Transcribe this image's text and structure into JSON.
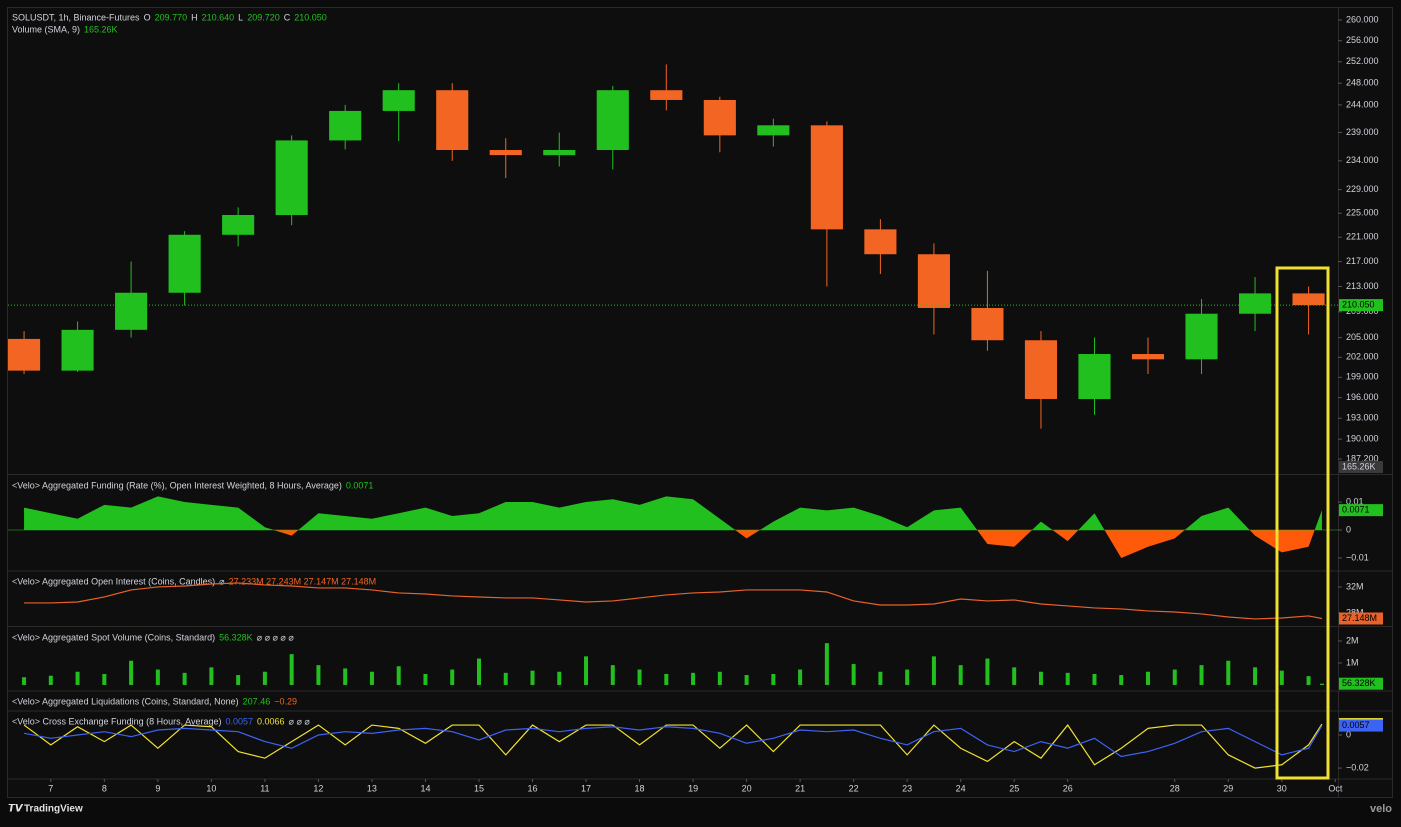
{
  "chart_data": [
    {
      "type": "candlestick",
      "log": true,
      "xlim": [
        6.2,
        31.05
      ],
      "ylim": [
        185.25,
        262.35
      ],
      "up_color": "#22c01e",
      "down_color": "#f26522",
      "legend": [
        [
          {
            "text": "SOLUSDT, 1h, Binance-Futures",
            "color": "#d1d4dc"
          },
          {
            "text": "O",
            "color": "#d1d4dc"
          },
          {
            "text": "209.770",
            "color": "#22c01e"
          },
          {
            "text": "H",
            "color": "#d1d4dc"
          },
          {
            "text": "210.640",
            "color": "#22c01e"
          },
          {
            "text": "L",
            "color": "#d1d4dc"
          },
          {
            "text": "209.720",
            "color": "#22c01e"
          },
          {
            "text": "C",
            "color": "#d1d4dc"
          },
          {
            "text": "210.050",
            "color": "#22c01e"
          }
        ],
        [
          {
            "text": "Volume (SMA, 9)",
            "color": "#d1d4dc"
          },
          {
            "text": "165.26K",
            "color": "#22c01e"
          }
        ]
      ],
      "x": [
        6.5,
        7.5,
        8.5,
        9.5,
        10.5,
        11.5,
        12.5,
        13.5,
        14.5,
        15.5,
        16.5,
        17.5,
        18.5,
        19.5,
        20.5,
        21.5,
        22.5,
        23.5,
        24.5,
        25.5,
        26.5,
        27.5,
        28.5,
        29.5,
        30.5
      ],
      "open": [
        204.8,
        200,
        206.2,
        212,
        221.4,
        224.7,
        237.6,
        242.9,
        246.7,
        235.9,
        235,
        235.9,
        246.7,
        244.9,
        238.5,
        240.3,
        222.3,
        218.2,
        209.6,
        204.6,
        195.8,
        202.5,
        201.7,
        208.7,
        211.9
      ],
      "high": [
        206,
        207.5,
        217,
        222,
        226,
        238.5,
        244,
        248,
        248,
        238,
        239,
        247.5,
        251.5,
        245.5,
        241.5,
        241,
        224,
        220,
        215.5,
        206,
        205,
        205,
        211,
        214.5,
        213
      ],
      "low": [
        199.5,
        199.8,
        205,
        210,
        219.5,
        223,
        236,
        237.5,
        234,
        231,
        233,
        232.5,
        243,
        235.5,
        236.5,
        213,
        215,
        205.5,
        203,
        191.5,
        193.5,
        199.5,
        199.5,
        206,
        205.5
      ],
      "close": [
        200,
        206.2,
        212,
        221.4,
        224.7,
        237.6,
        242.9,
        246.7,
        235.9,
        235,
        235.9,
        246.7,
        244.9,
        238.5,
        240.3,
        222.3,
        218.2,
        209.6,
        204.6,
        195.8,
        202.5,
        201.7,
        208.7,
        211.9,
        210.05
      ],
      "price_line": {
        "value": 210.05,
        "label": "210.050"
      },
      "yticks": [
        {
          "value": 187.2,
          "label": "187.200"
        },
        {
          "value": 190,
          "label": "190.000"
        },
        {
          "value": 193,
          "label": "193.000"
        },
        {
          "value": 196,
          "label": "196.000"
        },
        {
          "value": 199,
          "label": "199.000"
        },
        {
          "value": 202,
          "label": "202.000"
        },
        {
          "value": 205,
          "label": "205.000"
        },
        {
          "value": 209,
          "label": "209.000"
        },
        {
          "value": 213,
          "label": "213.000"
        },
        {
          "value": 217,
          "label": "217.000"
        },
        {
          "value": 221,
          "label": "221.000"
        },
        {
          "value": 225,
          "label": "225.000"
        },
        {
          "value": 229,
          "label": "229.000"
        },
        {
          "value": 234,
          "label": "234.000"
        },
        {
          "value": 239,
          "label": "239.000"
        },
        {
          "value": 244,
          "label": "244.000"
        },
        {
          "value": 248,
          "label": "248.000"
        },
        {
          "value": 252,
          "label": "252.000"
        },
        {
          "value": 256,
          "label": "256.000"
        },
        {
          "value": 260,
          "label": "260.000"
        }
      ]
    },
    {
      "type": "area",
      "xlim": [
        6.2,
        31.05
      ],
      "ylim": [
        -0.0143,
        0.0193
      ],
      "color": "#22c01e",
      "negative_color": "#ff5a0a",
      "legend": [
        [
          {
            "text": "<Velo> Aggregated Funding (Rate (%), Open Interest Weighted, 8 Hours, Average)",
            "color": "#d1d4dc"
          },
          {
            "text": "0.0071",
            "color": "#22c01e"
          }
        ]
      ],
      "x": [
        6.5,
        7,
        7.5,
        8,
        8.5,
        9,
        9.5,
        10,
        10.5,
        11,
        11.5,
        12,
        12.5,
        13,
        13.5,
        14,
        14.5,
        15,
        15.5,
        16,
        16.5,
        17,
        17.5,
        18,
        18.5,
        19,
        19.5,
        20,
        20.5,
        21,
        21.5,
        22,
        22.5,
        23,
        23.5,
        24,
        24.5,
        25,
        25.5,
        26,
        26.5,
        27,
        27.5,
        28,
        28.5,
        29,
        29.5,
        30,
        30.5,
        30.75
      ],
      "values": [
        0.008,
        0.006,
        0.004,
        0.009,
        0.008,
        0.012,
        0.01,
        0.009,
        0.008,
        0.001,
        -0.002,
        0.006,
        0.005,
        0.004,
        0.006,
        0.008,
        0.005,
        0.006,
        0.01,
        0.01,
        0.008,
        0.01,
        0.011,
        0.009,
        0.012,
        0.011,
        0.004,
        -0.003,
        0.003,
        0.008,
        0.007,
        0.008,
        0.005,
        0.001,
        0.007,
        0.008,
        -0.005,
        -0.006,
        0.003,
        -0.004,
        0.006,
        -0.01,
        -0.006,
        -0.003,
        0.005,
        0.008,
        -0.002,
        -0.008,
        -0.006,
        0.0071
      ],
      "yticks": [
        0.01,
        0,
        {
          "value": -0.01,
          "label": "−0.01"
        }
      ]
    },
    {
      "type": "line",
      "xlim": [
        6.2,
        31.05
      ],
      "ylim": [
        26.15,
        34.3
      ],
      "legend": [
        [
          {
            "text": "<Velo> Aggregated Open Interest (Coins, Candles)",
            "color": "#d1d4dc"
          },
          {
            "text": "⌀",
            "color": "#d1d4dc"
          },
          {
            "text": "27.233M 27.243M 27.147M 27.148M",
            "color": "#f26522"
          }
        ]
      ],
      "series": [
        {
          "color": "#e8622a",
          "x": [
            6.5,
            7,
            7.5,
            8,
            8.5,
            9,
            9.5,
            10,
            10.5,
            11,
            11.5,
            12,
            12.5,
            13,
            13.5,
            14,
            14.5,
            15,
            15.5,
            16,
            16.5,
            17,
            17.5,
            18,
            18.5,
            19,
            19.5,
            20,
            20.5,
            21,
            21.5,
            22,
            22.5,
            23,
            23.5,
            24,
            24.5,
            25,
            25.5,
            26,
            26.5,
            27,
            27.5,
            28,
            28.5,
            29,
            29.5,
            30,
            30.5,
            30.75
          ],
          "values": [
            29.54,
            29.54,
            29.69,
            30.46,
            31.54,
            32,
            32.15,
            32.46,
            32.62,
            32.31,
            32.15,
            31.85,
            31.85,
            31.54,
            31.08,
            30.92,
            30.62,
            30.46,
            30.31,
            30.31,
            30,
            29.69,
            29.85,
            30.31,
            30.77,
            31.08,
            31.23,
            31.54,
            31.54,
            31.54,
            31.23,
            29.85,
            29.23,
            29.23,
            29.38,
            30.15,
            29.85,
            30,
            29.38,
            29.08,
            28.77,
            28.62,
            28.31,
            28.15,
            27.85,
            27.38,
            27.08,
            27.23,
            27.54,
            27.148
          ],
          "value_labels": [
            null,
            null,
            null,
            null,
            null,
            null,
            null,
            null,
            null,
            null,
            null,
            null,
            null,
            null,
            null,
            null,
            null,
            null,
            null,
            null,
            null,
            null,
            null,
            null,
            null,
            null,
            null,
            null,
            null,
            null,
            null,
            null,
            null,
            null,
            null,
            null,
            null,
            null,
            null,
            null,
            null,
            null,
            null,
            null,
            null,
            null,
            null,
            null,
            null,
            "27.148M"
          ]
        }
      ],
      "yticks": [
        {
          "value": 32,
          "label": "32M"
        },
        {
          "value": 28,
          "label": "28M"
        }
      ]
    },
    {
      "type": "bar",
      "xlim": [
        6.2,
        31.05
      ],
      "ylim": [
        -0.23,
        2.59
      ],
      "color": "#22c01e",
      "legend": [
        [
          {
            "text": "<Velo> Aggregated Spot Volume (Coins, Standard)",
            "color": "#d1d4dc"
          },
          {
            "text": "56.328K",
            "color": "#22c01e"
          },
          {
            "text": "⌀ ⌀ ⌀ ⌀ ⌀",
            "color": "#d1d4dc"
          }
        ]
      ],
      "x": [
        6.5,
        7,
        7.5,
        8,
        8.5,
        9,
        9.5,
        10,
        10.5,
        11,
        11.5,
        12,
        12.5,
        13,
        13.5,
        14,
        14.5,
        15,
        15.5,
        16,
        16.5,
        17,
        17.5,
        18,
        18.5,
        19,
        19.5,
        20,
        20.5,
        21,
        21.5,
        22,
        22.5,
        23,
        23.5,
        24,
        24.5,
        25,
        25.5,
        26,
        26.5,
        27,
        27.5,
        28,
        28.5,
        29,
        29.5,
        30,
        30.5,
        30.75
      ],
      "values": [
        0.35,
        0.42,
        0.6,
        0.5,
        1.1,
        0.7,
        0.55,
        0.8,
        0.45,
        0.6,
        1.4,
        0.9,
        0.75,
        0.6,
        0.85,
        0.5,
        0.7,
        1.2,
        0.55,
        0.65,
        0.6,
        1.3,
        0.9,
        0.7,
        0.5,
        0.55,
        0.6,
        0.45,
        0.5,
        0.7,
        1.9,
        0.95,
        0.6,
        0.7,
        1.3,
        0.9,
        1.2,
        0.8,
        0.6,
        0.55,
        0.5,
        0.45,
        0.6,
        0.7,
        0.9,
        1.1,
        0.8,
        0.65,
        0.4,
        0.056328
      ],
      "value_labels": [
        null,
        null,
        null,
        null,
        null,
        null,
        null,
        null,
        null,
        null,
        null,
        null,
        null,
        null,
        null,
        null,
        null,
        null,
        null,
        null,
        null,
        null,
        null,
        null,
        null,
        null,
        null,
        null,
        null,
        null,
        null,
        null,
        null,
        null,
        null,
        null,
        null,
        null,
        null,
        null,
        null,
        null,
        null,
        null,
        null,
        null,
        null,
        null,
        null,
        "56.328K"
      ],
      "yticks": [
        {
          "value": 2,
          "label": "2M"
        },
        {
          "value": 1,
          "label": "1M"
        }
      ]
    },
    {
      "type": "bar",
      "xlim": [
        6.2,
        31.05
      ],
      "legend": [
        [
          {
            "text": "<Velo> Aggregated Liquidations (Coins, Standard, None)",
            "color": "#d1d4dc"
          },
          {
            "text": "207.46",
            "color": "#22c01e"
          },
          {
            "text": "−0.29",
            "color": "#f26522"
          }
        ]
      ]
    },
    {
      "type": "line",
      "xlim": [
        6.2,
        31.05
      ],
      "ylim": [
        -0.026,
        0.0139
      ],
      "legend": [
        [
          {
            "text": "<Velo> Cross Exchange Funding (8 Hours, Average)",
            "color": "#d1d4dc"
          },
          {
            "text": "0.0057",
            "color": "#3d63f5"
          },
          {
            "text": "0.0066",
            "color": "#f0e130"
          },
          {
            "text": "⌀ ⌀ ⌀",
            "color": "#d1d4dc"
          }
        ]
      ],
      "series": [
        {
          "color": "#f0e130",
          "x": [
            6.5,
            7,
            7.5,
            8,
            8.5,
            9,
            9.5,
            10,
            10.5,
            11,
            11.5,
            12,
            12.5,
            13,
            13.5,
            14,
            14.5,
            15,
            15.5,
            16,
            16.5,
            17,
            17.5,
            18,
            18.5,
            19,
            19.5,
            20,
            20.5,
            21,
            21.5,
            22,
            22.5,
            23,
            23.5,
            24,
            24.5,
            25,
            25.5,
            26,
            26.5,
            27,
            27.5,
            28,
            28.5,
            29,
            29.5,
            30,
            30.5,
            30.75
          ],
          "values": [
            0.006,
            -0.006,
            0.005,
            -0.004,
            0.006,
            -0.008,
            0.006,
            0.005,
            -0.01,
            -0.014,
            -0.004,
            0.006,
            -0.006,
            0.006,
            0.004,
            -0.005,
            0.006,
            0.006,
            -0.012,
            0.006,
            -0.004,
            0.006,
            0.006,
            -0.006,
            0.006,
            0.006,
            -0.008,
            0.006,
            -0.01,
            0.006,
            0.006,
            0.006,
            0.006,
            -0.012,
            0.006,
            -0.008,
            -0.016,
            -0.004,
            -0.014,
            0.006,
            -0.018,
            -0.008,
            0.004,
            0.006,
            0.006,
            -0.012,
            -0.02,
            -0.018,
            -0.006,
            0.0066
          ]
        },
        {
          "color": "#3d63f5",
          "x": [
            6.5,
            7,
            7.5,
            8,
            8.5,
            9,
            9.5,
            10,
            10.5,
            11,
            11.5,
            12,
            12.5,
            13,
            13.5,
            14,
            14.5,
            15,
            15.5,
            16,
            16.5,
            17,
            17.5,
            18,
            18.5,
            19,
            19.5,
            20,
            20.5,
            21,
            21.5,
            22,
            22.5,
            23,
            23.5,
            24,
            24.5,
            25,
            25.5,
            26,
            26.5,
            27,
            27.5,
            28,
            28.5,
            29,
            29.5,
            30,
            30.5,
            30.75
          ],
          "values": [
            0.001,
            -0.002,
            0.0,
            0.002,
            -0.001,
            0.003,
            0.004,
            0.003,
            0.002,
            -0.004,
            -0.008,
            0.0,
            0.002,
            0.001,
            0.003,
            0.004,
            0.002,
            -0.003,
            0.003,
            0.004,
            0.002,
            0.004,
            0.005,
            0.003,
            0.005,
            0.004,
            0.001,
            -0.005,
            -0.002,
            0.003,
            0.002,
            0.003,
            -0.002,
            -0.006,
            0.002,
            0.004,
            -0.006,
            -0.01,
            -0.004,
            -0.008,
            -0.002,
            -0.013,
            -0.01,
            -0.005,
            0.002,
            0.004,
            -0.004,
            -0.012,
            -0.008,
            0.0057
          ]
        }
      ],
      "yticks": [
        0,
        {
          "value": -0.02,
          "label": "−0.02"
        }
      ],
      "xticks": [
        7,
        8,
        9,
        10,
        11,
        12,
        13,
        14,
        15,
        16,
        17,
        18,
        19,
        20,
        21,
        22,
        23,
        24,
        25,
        26,
        28,
        29,
        30,
        {
          "value": 31,
          "label": "Oct"
        }
      ]
    }
  ],
  "footer": {
    "brand": "TradingView",
    "logo": "velo"
  }
}
